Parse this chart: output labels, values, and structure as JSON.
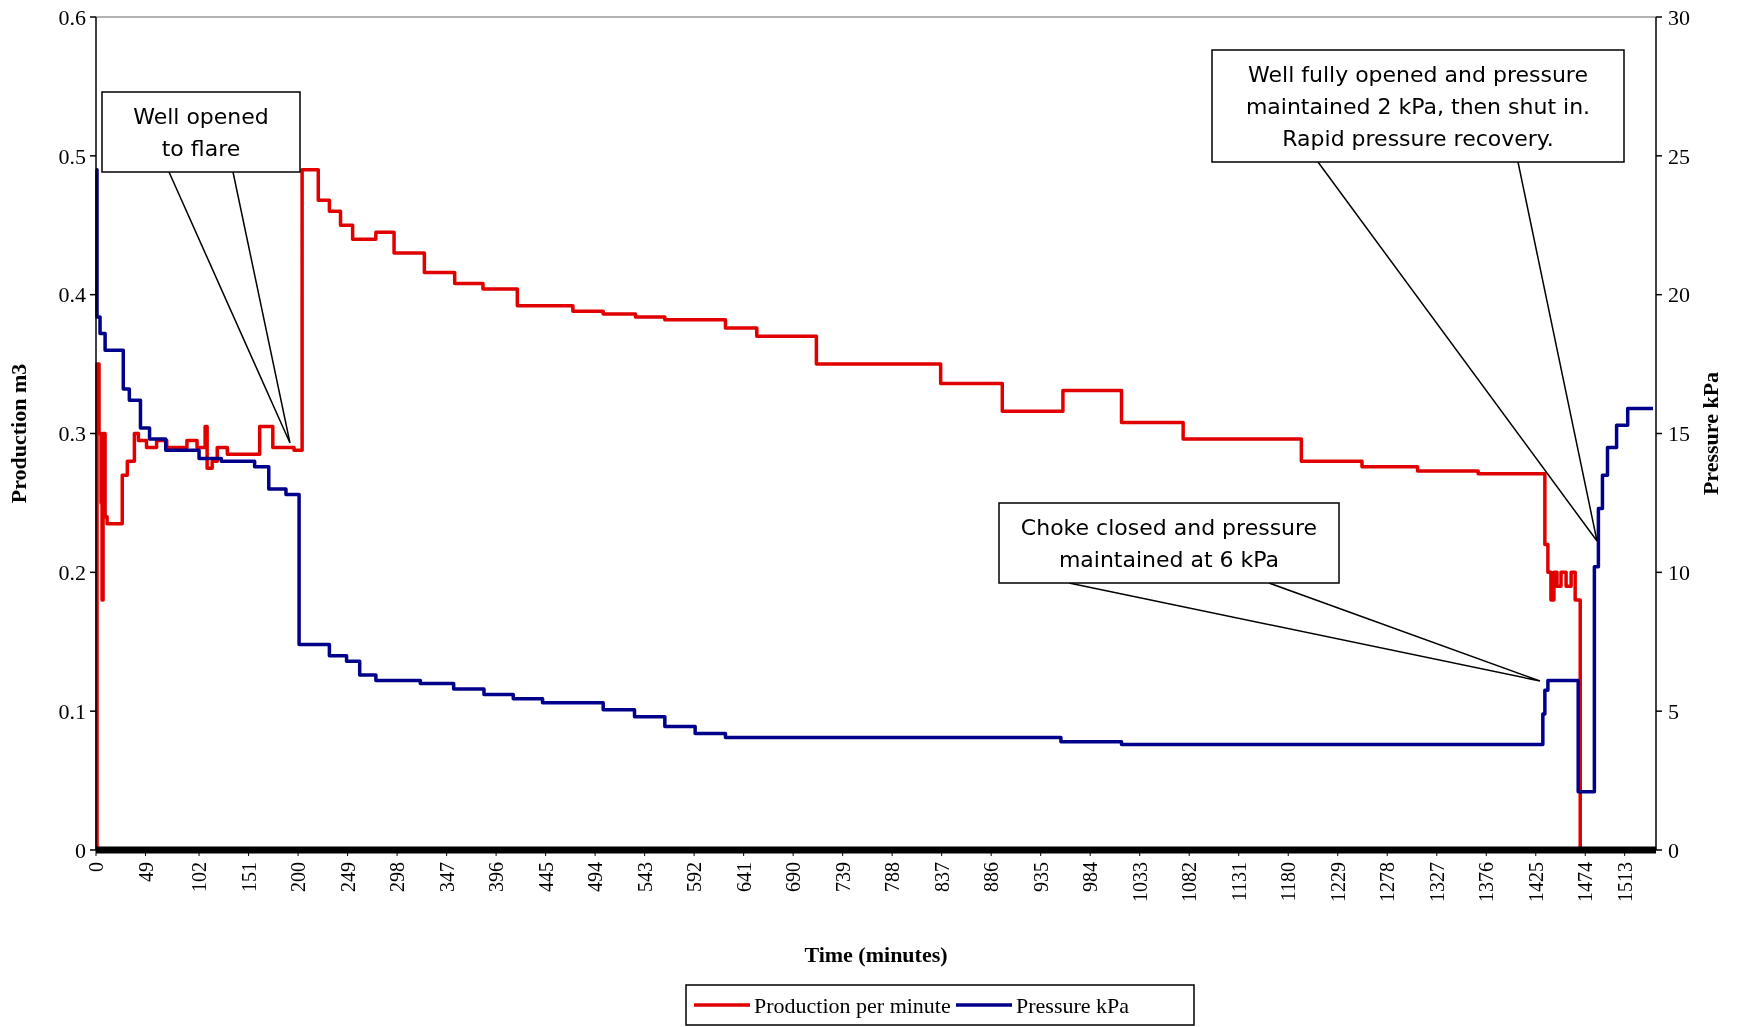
{
  "chart_data": {
    "type": "step",
    "xlabel": "Time (minutes)",
    "ylabel": "Production m3",
    "y2label": "Pressure kPa",
    "xlim": [
      0,
      1544
    ],
    "xticks": [
      0,
      49,
      102,
      151,
      200,
      249,
      298,
      347,
      396,
      445,
      494,
      543,
      592,
      641,
      690,
      739,
      788,
      837,
      886,
      935,
      984,
      1033,
      1082,
      1131,
      1180,
      1229,
      1278,
      1327,
      1376,
      1425,
      1474,
      1513
    ],
    "ylim": [
      0,
      0.6
    ],
    "yticks": [
      0,
      0.1,
      0.2,
      0.3,
      0.4,
      0.5,
      0.6
    ],
    "y2lim": [
      0,
      30
    ],
    "y2ticks": [
      0,
      5,
      10,
      15,
      20,
      25,
      30
    ],
    "grid": false,
    "legend": "bottom",
    "line_style": "solid",
    "series": [
      {
        "name": "Production per minute",
        "color": "#e00000",
        "x": [
          0,
          1,
          3,
          5,
          6,
          7,
          9,
          11,
          26,
          31,
          38,
          42,
          50,
          60,
          70,
          80,
          90,
          100,
          108,
          110,
          115,
          120,
          130,
          162,
          175,
          196,
          204,
          220,
          231,
          242,
          254,
          277,
          295,
          325,
          355,
          383,
          417,
          472,
          502,
          534,
          563,
          623,
          654,
          713,
          836,
          897,
          957,
          1015,
          1076,
          1193,
          1253,
          1308,
          1368,
          1434,
          1437,
          1440,
          1443,
          1446,
          1450,
          1455,
          1460,
          1464,
          1469,
          1544
        ],
        "values": [
          0,
          0.35,
          0.3,
          0.25,
          0.18,
          0.3,
          0.24,
          0.235,
          0.27,
          0.28,
          0.3,
          0.295,
          0.29,
          0.295,
          0.29,
          0.29,
          0.295,
          0.29,
          0.305,
          0.275,
          0.28,
          0.29,
          0.285,
          0.305,
          0.29,
          0.288,
          0.49,
          0.468,
          0.46,
          0.45,
          0.44,
          0.445,
          0.43,
          0.416,
          0.408,
          0.404,
          0.392,
          0.388,
          0.386,
          0.384,
          0.382,
          0.376,
          0.37,
          0.35,
          0.336,
          0.316,
          0.331,
          0.308,
          0.296,
          0.28,
          0.276,
          0.273,
          0.271,
          0.22,
          0.2,
          0.18,
          0.2,
          0.19,
          0.2,
          0.19,
          0.2,
          0.18,
          0,
          0
        ]
      },
      {
        "name": "Pressure kPa",
        "color": "#00008b",
        "axis": "y2",
        "x": [
          0,
          1,
          4,
          9,
          27,
          33,
          44,
          53,
          69,
          102,
          124,
          157,
          171,
          188,
          201,
          231,
          248,
          261,
          277,
          321,
          354,
          384,
          413,
          442,
          502,
          533,
          563,
          593,
          623,
          955,
          1015,
          1432,
          1434,
          1437,
          1467,
          1483,
          1487,
          1491,
          1496,
          1505,
          1516,
          1541
        ],
        "values": [
          24.5,
          19.2,
          18.6,
          18.0,
          16.6,
          16.2,
          15.2,
          14.8,
          14.4,
          14.1,
          14.0,
          13.8,
          13.0,
          12.8,
          7.4,
          7.0,
          6.8,
          6.3,
          6.1,
          6.0,
          5.8,
          5.6,
          5.45,
          5.3,
          5.05,
          4.8,
          4.45,
          4.2,
          4.05,
          3.9,
          3.8,
          4.9,
          5.75,
          6.1,
          2.1,
          10.2,
          12.3,
          13.5,
          14.5,
          15.3,
          15.9,
          15.9
        ]
      }
    ],
    "annotations": [
      "Well opened\nto flare",
      "Choke closed and pressure\nmaintained at 6 kPa",
      "Well fully opened and pressure\nmaintained 2 kPa, then shut in.\nRapid pressure recovery."
    ]
  }
}
